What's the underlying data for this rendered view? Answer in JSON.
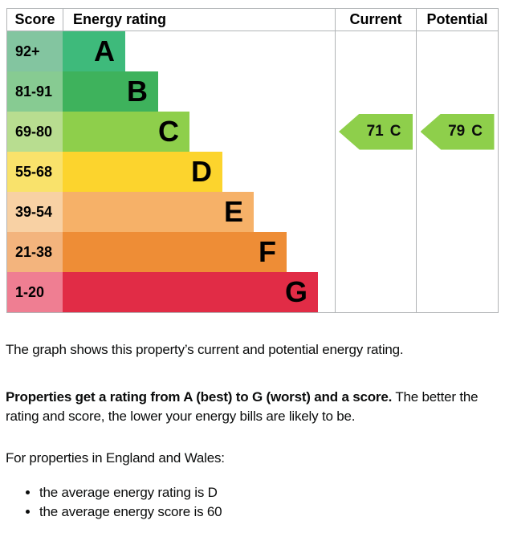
{
  "chart_data": {
    "type": "bar",
    "title": "Energy rating",
    "columns": [
      "Score",
      "Energy rating",
      "Current",
      "Potential"
    ],
    "legend_position": "none",
    "grid": false,
    "bands": [
      {
        "letter": "A",
        "score_range": "92+",
        "bar_color": "#3eba7b",
        "cell_color": "#83c5a0",
        "bar_width": "23%"
      },
      {
        "letter": "B",
        "score_range": "81-91",
        "bar_color": "#3eb25c",
        "cell_color": "#87cb92",
        "bar_width": "35.1%"
      },
      {
        "letter": "C",
        "score_range": "69-80",
        "bar_color": "#8ecf4b",
        "cell_color": "#b8dd90",
        "bar_width": "46.6%"
      },
      {
        "letter": "D",
        "score_range": "55-68",
        "bar_color": "#fcd42d",
        "cell_color": "#f9e26b",
        "bar_width": "58.7%"
      },
      {
        "letter": "E",
        "score_range": "39-54",
        "bar_color": "#f6b168",
        "cell_color": "#f8d1a4",
        "bar_width": "70.2%"
      },
      {
        "letter": "F",
        "score_range": "21-38",
        "bar_color": "#ee8d36",
        "cell_color": "#f3b47d",
        "bar_width": "82.3%"
      },
      {
        "letter": "G",
        "score_range": "1-20",
        "bar_color": "#e12c46",
        "cell_color": "#ef7e92",
        "bar_width": "93.8%"
      }
    ],
    "current": {
      "score": "71",
      "band": "C",
      "arrow_color": "#8ecf4b"
    },
    "potential": {
      "score": "79",
      "band": "C",
      "arrow_color": "#8ecf4b"
    },
    "border_color": "#b1b4b6"
  },
  "text": {
    "para1": "The graph shows this property’s current and potential energy rating.",
    "para2_bold": "Properties get a rating from A (best) to G (worst) and a score.",
    "para2_rest": " The better the rating and score, the lower your energy bills are likely to be.",
    "para3": "For properties in England and Wales:",
    "bullets": [
      "the average energy rating is D",
      "the average energy score is 60"
    ]
  }
}
